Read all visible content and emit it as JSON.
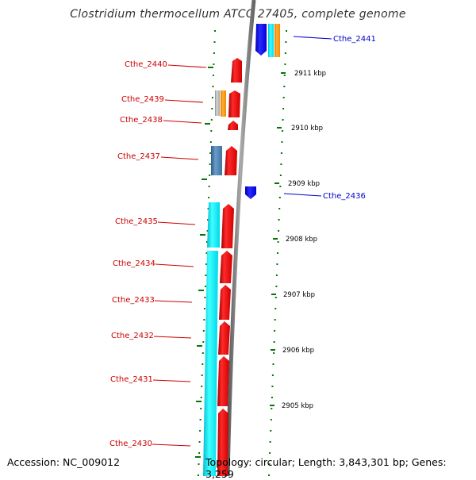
{
  "title": "Clostridium thermocellum ATCC 27405, complete genome",
  "footer": {
    "accession": "Accession: NC_009012",
    "summary": "Topology: circular; Length: 3,843,301 bp; Genes: 3,259"
  },
  "gene_labels_left": [
    "Cthe_2440",
    "Cthe_2439",
    "Cthe_2438",
    "Cthe_2437",
    "Cthe_2435",
    "Cthe_2434",
    "Cthe_2433",
    "Cthe_2432",
    "Cthe_2431",
    "Cthe_2430"
  ],
  "gene_labels_right": [
    "Cthe_2441",
    "Cthe_2436"
  ],
  "kbp_ticks": [
    "2911 kbp",
    "2910 kbp",
    "2909 kbp",
    "2908 kbp",
    "2907 kbp",
    "2906 kbp",
    "2905 kbp"
  ],
  "colors": {
    "forward_gene": "#ff0000",
    "reverse_gene": "#0000ff",
    "label_red": "#cc0000",
    "label_blue": "#0000cc",
    "cds_cyan": "#00e5ee",
    "cds_orange": "#ff9900",
    "cds_steel": "#4682b4",
    "cds_gray": "#b0b0b0",
    "backbone": "#7f7f7f",
    "tick_green": "#007700"
  }
}
